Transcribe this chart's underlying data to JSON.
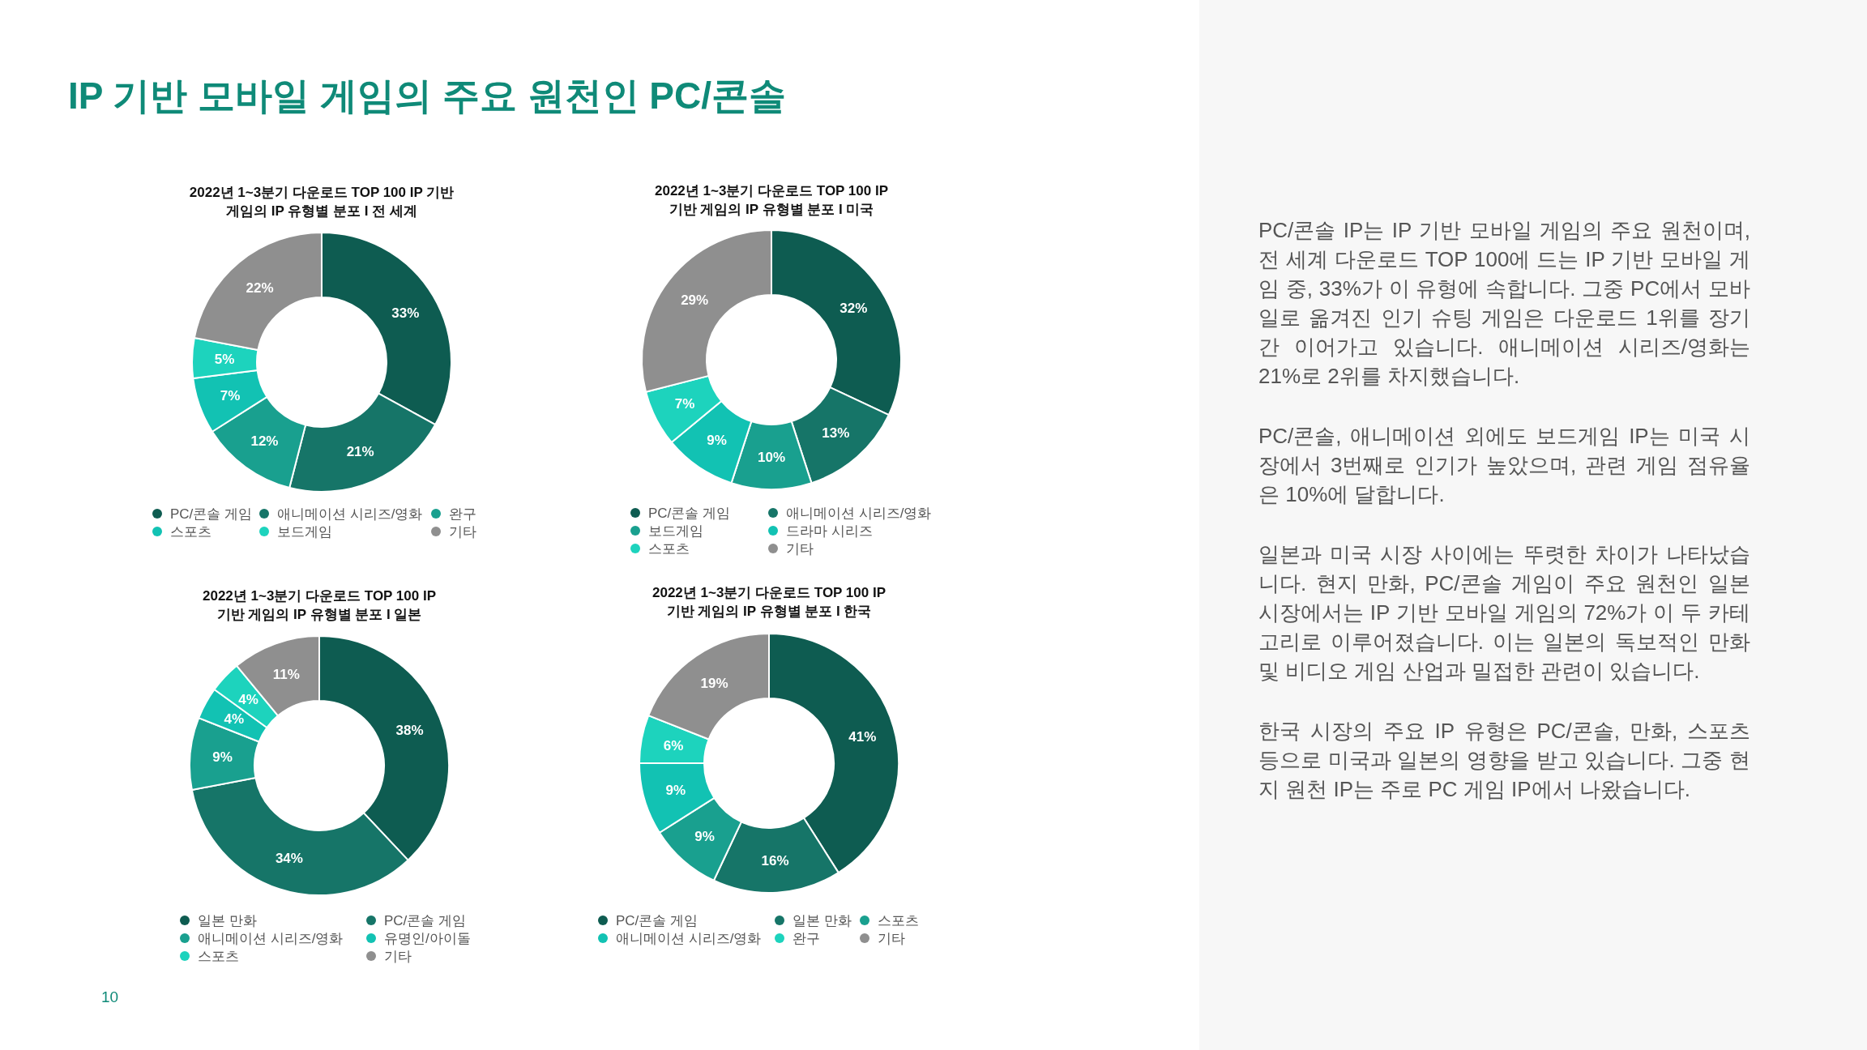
{
  "chart_data": [
    {
      "type": "donut",
      "title": "2022년 1~3분기 다운로드 TOP 100 IP 기반 게임의 IP 유형별 분포 I 전 세계",
      "categories": [
        "PC/콘솔 게임",
        "애니메이션 시리즈/영화",
        "완구",
        "스포츠",
        "보드게임",
        "기타"
      ],
      "values": [
        33,
        21,
        12,
        7,
        5,
        22
      ],
      "value_labels": [
        "33%",
        "21%",
        "12%",
        "7%",
        "5%",
        "22%"
      ],
      "colors": [
        "#0e5c51",
        "#167568",
        "#19a08f",
        "#12c2b3",
        "#1dd3bd",
        "#8f8f8f"
      ],
      "legend": "bottom"
    },
    {
      "type": "donut",
      "title": "2022년 1~3분기 다운로드 TOP 100 IP 기반 게임의 IP 유형별 분포 I 미국",
      "categories": [
        "PC/콘솔 게임",
        "애니메이션 시리즈/영화",
        "보드게임",
        "드라마 시리즈",
        "스포츠",
        "기타"
      ],
      "values": [
        32,
        13,
        10,
        9,
        7,
        29
      ],
      "value_labels": [
        "32%",
        "13%",
        "10%",
        "9%",
        "7%",
        "29%"
      ],
      "colors": [
        "#0e5c51",
        "#167568",
        "#19a08f",
        "#12c2b3",
        "#1dd3bd",
        "#8f8f8f"
      ],
      "legend": "bottom"
    },
    {
      "type": "donut",
      "title": "2022년 1~3분기 다운로드 TOP 100 IP 기반 게임의 IP 유형별 분포 I 일본",
      "categories": [
        "일본 만화",
        "PC/콘솔 게임",
        "애니메이션 시리즈/영화",
        "유명인/아이돌",
        "스포츠",
        "기타"
      ],
      "values": [
        38,
        34,
        9,
        4,
        4,
        11
      ],
      "value_labels": [
        "38%",
        "34%",
        "9%",
        "4%",
        "4%",
        "11%"
      ],
      "colors": [
        "#0e5c51",
        "#167568",
        "#19a08f",
        "#12c2b3",
        "#1dd3bd",
        "#8f8f8f"
      ],
      "legend": "bottom"
    },
    {
      "type": "donut",
      "title": "2022년 1~3분기 다운로드 TOP 100 IP 기반 게임의 IP 유형별 분포 I 한국",
      "categories": [
        "PC/콘솔 게임",
        "일본 만화",
        "스포츠",
        "애니메이션 시리즈/영화",
        "완구",
        "기타"
      ],
      "values": [
        41,
        16,
        9,
        9,
        6,
        19
      ],
      "value_labels": [
        "41%",
        "16%",
        "9%",
        "9%",
        "6%",
        "19%"
      ],
      "colors": [
        "#0e5c51",
        "#167568",
        "#19a08f",
        "#12c2b3",
        "#1dd3bd",
        "#8f8f8f"
      ],
      "legend": "bottom"
    },
    {
      "type": "other",
      "title": "IP 기반 모바일 게임의 주요 원천인 PC/콘솔",
      "annotations": [
        "PC/콘솔 IP는 IP 기반 모바일 게임의 주요 원천이며, 전 세계 다운로드 TOP 100에 드는 IP 기반 모바일 게임 중, 33%가 이 유형에 속합니다. 그중 PC에서 모바일로 옮겨진 인기 슈팅 게임은 다운로드 1위를 장기간 이어가고 있습니다. 애니메이션 시리즈/영화는 21%로 2위를 차지했습니다.",
        "PC/콘솔, 애니메이션 외에도 보드게임 IP는 미국 시장에서 3번째로 인기가 높았으며, 관련 게임 점유율은 10%에 달합니다.",
        "일본과 미국 시장 사이에는 뚜렷한 차이가 나타났습니다. 현지 만화, PC/콘솔 게임이 주요 원천인 일본 시장에서는 IP 기반 모바일 게임의 72%가 이 두 카테고리로 이루어졌습니다. 이는 일본의 독보적인 만화 및 비디오 게임 산업과 밀접한 관련이 있습니다.",
        "한국 시장의 주요 IP 유형은 PC/콘솔, 만화, 스포츠 등으로 미국과 일본의 영향을 받고 있습니다. 그중 현지 원천 IP는 주로 PC 게임 IP에서 나왔습니다.",
        "10"
      ]
    }
  ]
}
